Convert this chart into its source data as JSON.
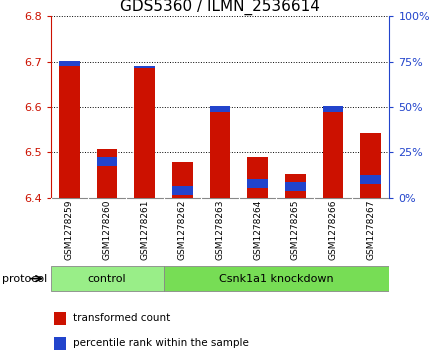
{
  "title": "GDS5360 / ILMN_2536614",
  "samples": [
    "GSM1278259",
    "GSM1278260",
    "GSM1278261",
    "GSM1278262",
    "GSM1278263",
    "GSM1278264",
    "GSM1278265",
    "GSM1278266",
    "GSM1278267"
  ],
  "transformed_counts": [
    6.702,
    6.508,
    6.69,
    6.478,
    6.602,
    6.49,
    6.452,
    6.602,
    6.543
  ],
  "percentile_ranks": [
    75,
    20,
    74,
    4,
    50,
    8,
    6,
    50,
    10
  ],
  "ylim_left": [
    6.4,
    6.8
  ],
  "ylim_right": [
    0,
    100
  ],
  "yticks_left": [
    6.4,
    6.5,
    6.6,
    6.7,
    6.8
  ],
  "yticks_right": [
    0,
    25,
    50,
    75,
    100
  ],
  "bar_color_red": "#cc1100",
  "bar_color_blue": "#2244cc",
  "bar_width": 0.55,
  "base_value": 6.4,
  "protocol_groups": [
    {
      "label": "control",
      "start": 0,
      "end": 2,
      "color": "#99ee88"
    },
    {
      "label": "Csnk1a1 knockdown",
      "start": 3,
      "end": 8,
      "color": "#77dd55"
    }
  ],
  "legend_items": [
    {
      "label": "transformed count",
      "color": "#cc1100"
    },
    {
      "label": "percentile rank within the sample",
      "color": "#2244cc"
    }
  ],
  "protocol_label": "protocol",
  "background_color": "#ffffff",
  "plot_bg_color": "#ffffff",
  "xtick_bg_color": "#cccccc",
  "title_fontsize": 11,
  "tick_fontsize": 8,
  "axis_color_left": "#cc1100",
  "axis_color_right": "#2244cc"
}
